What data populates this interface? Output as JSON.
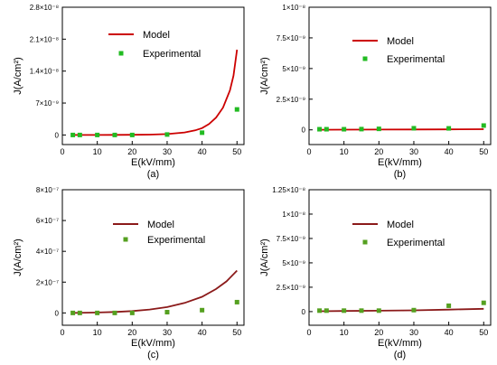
{
  "chart_data": [
    {
      "type": "line",
      "panel_label": "(a)",
      "xlabel": "E(kV/mm)",
      "ylabel": "J(A/cm²)",
      "xlim": [
        0,
        52
      ],
      "ylim": [
        -2.1e-09,
        2.8e-08
      ],
      "x_ticks": [
        0,
        10,
        20,
        30,
        40,
        50
      ],
      "y_ticks": [
        {
          "value": 0,
          "label": "0"
        },
        {
          "value": 7e-09,
          "label": "7×10⁻⁹"
        },
        {
          "value": 1.4e-08,
          "label": "1.4×10⁻⁸"
        },
        {
          "value": 2.1e-08,
          "label": "2.1×10⁻⁸"
        },
        {
          "value": 2.8e-08,
          "label": "2.8×10⁻⁸"
        }
      ],
      "series": [
        {
          "name": "Model",
          "kind": "line",
          "color": "#cc0000",
          "x": [
            3,
            5,
            10,
            15,
            20,
            25,
            30,
            35,
            38,
            40,
            42,
            44,
            46,
            48,
            49,
            50
          ],
          "y": [
            0,
            0,
            0,
            1e-11,
            3e-11,
            8e-11,
            2e-10,
            5.5e-10,
            1e-09,
            1.5e-09,
            2.4e-09,
            3.8e-09,
            6e-09,
            9.8e-09,
            1.3e-08,
            1.87e-08
          ]
        },
        {
          "name": "Experimental",
          "kind": "scatter",
          "color": "#22bb22",
          "x": [
            3,
            5,
            10,
            15,
            20,
            30,
            40,
            50
          ],
          "y": [
            0,
            0,
            0,
            0,
            0,
            1e-10,
            5e-10,
            5.6e-09
          ]
        }
      ]
    },
    {
      "type": "line",
      "panel_label": "(b)",
      "xlabel": "E(kV/mm)",
      "ylabel": "J(A/cm²)",
      "xlim": [
        0,
        52
      ],
      "ylim": [
        -1.2e-09,
        1e-08
      ],
      "x_ticks": [
        0,
        10,
        20,
        30,
        40,
        50
      ],
      "y_ticks": [
        {
          "value": 0,
          "label": "0"
        },
        {
          "value": 2.5e-09,
          "label": "2.5×10⁻⁹"
        },
        {
          "value": 5e-09,
          "label": "5×10⁻⁹"
        },
        {
          "value": 7.5e-09,
          "label": "7.5×10⁻⁹"
        },
        {
          "value": 1e-08,
          "label": "1×10⁻⁸"
        }
      ],
      "series": [
        {
          "name": "Model",
          "kind": "line",
          "color": "#cc0000",
          "x": [
            3,
            10,
            20,
            30,
            40,
            50
          ],
          "y": [
            1e-11,
            1.5e-11,
            2e-11,
            3e-11,
            4e-11,
            5e-11
          ]
        },
        {
          "name": "Experimental",
          "kind": "scatter",
          "color": "#22bb22",
          "x": [
            3,
            5,
            10,
            15,
            20,
            30,
            40,
            50
          ],
          "y": [
            5e-11,
            5e-11,
            5e-11,
            6e-11,
            8e-11,
            1.3e-10,
            1.2e-10,
            3.5e-10
          ]
        }
      ]
    },
    {
      "type": "line",
      "panel_label": "(c)",
      "xlabel": "E(kV/mm)",
      "ylabel": "J(A/cm²)",
      "xlim": [
        0,
        52
      ],
      "ylim": [
        -8e-08,
        8e-07
      ],
      "x_ticks": [
        0,
        10,
        20,
        30,
        40,
        50
      ],
      "y_ticks": [
        {
          "value": 0,
          "label": "0"
        },
        {
          "value": 2e-07,
          "label": "2×10⁻⁷"
        },
        {
          "value": 4e-07,
          "label": "4×10⁻⁷"
        },
        {
          "value": 6e-07,
          "label": "6×10⁻⁷"
        },
        {
          "value": 8e-07,
          "label": "8×10⁻⁷"
        }
      ],
      "series": [
        {
          "name": "Model",
          "kind": "line",
          "color": "#8b1a1a",
          "x": [
            3,
            10,
            15,
            20,
            25,
            30,
            35,
            40,
            44,
            47,
            50
          ],
          "y": [
            0,
            3e-09,
            6e-09,
            1.2e-08,
            2.2e-08,
            3.8e-08,
            6.5e-08,
            1.05e-07,
            1.55e-07,
            2.05e-07,
            2.75e-07
          ]
        },
        {
          "name": "Experimental",
          "kind": "scatter",
          "color": "#55a020",
          "x": [
            3,
            5,
            10,
            15,
            20,
            30,
            40,
            50
          ],
          "y": [
            0,
            0,
            0,
            0,
            0,
            5e-09,
            1.8e-08,
            7e-08
          ]
        }
      ]
    },
    {
      "type": "line",
      "panel_label": "(d)",
      "xlabel": "E(kV/mm)",
      "ylabel": "J(A/cm²)",
      "xlim": [
        0,
        52
      ],
      "ylim": [
        -1.4e-09,
        1.25e-08
      ],
      "x_ticks": [
        0,
        10,
        20,
        30,
        40,
        50
      ],
      "y_ticks": [
        {
          "value": 0,
          "label": "0"
        },
        {
          "value": 2.5e-09,
          "label": "2.5×10⁻⁹"
        },
        {
          "value": 5e-09,
          "label": "5×10⁻⁹"
        },
        {
          "value": 7.5e-09,
          "label": "7.5×10⁻⁹"
        },
        {
          "value": 1e-08,
          "label": "1×10⁻⁸"
        },
        {
          "value": 1.25e-08,
          "label": "1.25×10⁻⁸"
        }
      ],
      "series": [
        {
          "name": "Model",
          "kind": "line",
          "color": "#8b1a1a",
          "x": [
            3,
            10,
            20,
            30,
            40,
            50
          ],
          "y": [
            4e-11,
            6e-11,
            9e-11,
            1.3e-10,
            2e-10,
            2.9e-10
          ]
        },
        {
          "name": "Experimental",
          "kind": "scatter",
          "color": "#55a020",
          "x": [
            3,
            5,
            10,
            15,
            20,
            30,
            40,
            50
          ],
          "y": [
            1e-10,
            1e-10,
            1e-10,
            1e-10,
            1e-10,
            1.5e-10,
            6e-10,
            9e-10
          ]
        }
      ]
    }
  ]
}
